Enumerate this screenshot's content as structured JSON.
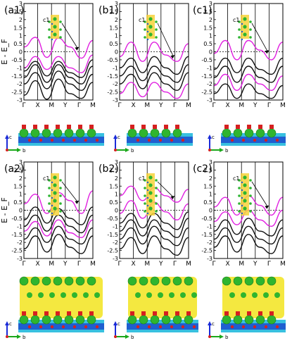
{
  "figure": {
    "background": "#ffffff"
  },
  "colors": {
    "bulk_bands": "#111111",
    "slab_bands": "#e020e0",
    "fermi_line": "#000000",
    "atom_green": "#2fb52f",
    "atom_red": "#d62020",
    "density_yellow": "#f0e000",
    "density_blue": "#1f5fd0",
    "density_cyan": "#38c0e0",
    "inset_highlight": "#f7d23a"
  },
  "axis_labels": {
    "c": "c",
    "b": "b"
  },
  "chart_data": [
    {
      "panel": "(a1)",
      "type": "line",
      "ylabel": "E - E_F",
      "ylim": [
        -3,
        3
      ],
      "yticks": [
        "3",
        "2.5",
        "2",
        "1.5",
        "1",
        "0.5",
        "0",
        "-0.5",
        "-1",
        "-1.5",
        "-2",
        "-2.5",
        "-3"
      ],
      "kpath": [
        "Γ",
        "X",
        "M",
        "Y",
        "Γ",
        "M"
      ],
      "inset_label": "c1",
      "series": [
        {
          "color": "#e020e0",
          "values": [
            0.3,
            0.9,
            -0.35,
            0.85,
            0.3,
            -0.4,
            0.7
          ]
        },
        {
          "color": "#e020e0",
          "values": [
            -1.0,
            -0.3,
            -1.1,
            -0.3,
            -1.0,
            -1.3,
            -0.2
          ]
        },
        {
          "color": "#111111",
          "values": [
            -1.2,
            -0.6,
            -1.5,
            -0.6,
            -1.3,
            -1.6,
            -0.5
          ]
        },
        {
          "color": "#111111",
          "values": [
            -1.6,
            -0.8,
            -1.9,
            -0.8,
            -1.6,
            -2.0,
            -0.9
          ]
        },
        {
          "color": "#111111",
          "values": [
            -2.0,
            -1.3,
            -2.3,
            -1.2,
            -2.0,
            -2.4,
            -1.4
          ]
        },
        {
          "color": "#111111",
          "values": [
            -2.7,
            -1.8,
            -2.95,
            -1.7,
            -2.6,
            -2.9,
            -1.9
          ]
        }
      ]
    },
    {
      "panel": "(b1)",
      "type": "line",
      "ylabel": "",
      "ylim": [
        -3,
        3
      ],
      "yticks": [
        "3",
        "2.5",
        "2",
        "1.5",
        "1",
        "0.5",
        "0",
        "-0.5",
        "-1",
        "-1.5",
        "-2",
        "-2.5",
        "-3"
      ],
      "kpath": [
        "Γ",
        "X",
        "M",
        "Y",
        "Γ",
        "M"
      ],
      "inset_label": "c1",
      "series": [
        {
          "color": "#e020e0",
          "values": [
            -0.3,
            0.6,
            -0.6,
            0.6,
            -0.2,
            -0.6,
            0.5
          ]
        },
        {
          "color": "#111111",
          "values": [
            -1.0,
            -0.4,
            -1.3,
            -0.3,
            -1.0,
            -1.4,
            -0.3
          ]
        },
        {
          "color": "#111111",
          "values": [
            -1.5,
            -0.9,
            -1.8,
            -0.9,
            -1.5,
            -1.9,
            -0.8
          ]
        },
        {
          "color": "#111111",
          "values": [
            -2.0,
            -1.4,
            -2.3,
            -1.3,
            -2.0,
            -2.4,
            -1.3
          ]
        },
        {
          "color": "#e020e0",
          "values": [
            -2.6,
            -1.9,
            -2.8,
            -1.9,
            -2.5,
            -2.9,
            -2.0
          ]
        }
      ]
    },
    {
      "panel": "(c1)",
      "type": "line",
      "ylabel": "",
      "ylim": [
        -3,
        3
      ],
      "yticks": [
        "3",
        "2.5",
        "2",
        "1.5",
        "1",
        "0.5",
        "0",
        "-0.5",
        "-1",
        "-1.5",
        "-2",
        "-2.5",
        "-3"
      ],
      "kpath": [
        "Γ",
        "X",
        "M",
        "Y",
        "Γ",
        "M"
      ],
      "inset_label": "c1",
      "series": [
        {
          "color": "#e020e0",
          "values": [
            -0.1,
            0.7,
            -0.5,
            0.7,
            0.1,
            -0.5,
            0.6
          ]
        },
        {
          "color": "#111111",
          "values": [
            -1.1,
            -0.4,
            -1.3,
            -0.4,
            -1.1,
            -1.4,
            -0.4
          ]
        },
        {
          "color": "#111111",
          "values": [
            -1.6,
            -0.9,
            -1.9,
            -0.9,
            -1.6,
            -1.9,
            -0.9
          ]
        },
        {
          "color": "#e020e0",
          "values": [
            -2.1,
            -1.4,
            -2.4,
            -1.4,
            -2.0,
            -2.4,
            -1.5
          ]
        },
        {
          "color": "#111111",
          "values": [
            -2.6,
            -2.0,
            -2.9,
            -2.0,
            -2.6,
            -2.9,
            -2.1
          ]
        }
      ]
    },
    {
      "panel": "(a2)",
      "type": "line",
      "ylabel": "E - E_F",
      "ylim": [
        -3,
        3
      ],
      "yticks": [
        "3",
        "2.5",
        "2",
        "1.5",
        "1",
        "0.5",
        "0",
        "-0.5",
        "-1",
        "-1.5",
        "-2",
        "-2.5",
        "-3"
      ],
      "kpath": [
        "Γ",
        "X",
        "M",
        "Y",
        "Γ",
        "M"
      ],
      "inset_label": "c1",
      "series": [
        {
          "color": "#e020e0",
          "values": [
            0.4,
            1.0,
            -0.2,
            1.1,
            0.6,
            -0.2,
            1.2
          ]
        },
        {
          "color": "#111111",
          "values": [
            -0.6,
            0.2,
            -0.8,
            0.1,
            -0.5,
            -0.9,
            0.2
          ]
        },
        {
          "color": "#111111",
          "values": [
            -1.0,
            -0.3,
            -1.3,
            -0.3,
            -1.0,
            -1.4,
            -0.3
          ]
        },
        {
          "color": "#e020e0",
          "values": [
            -1.3,
            -0.7,
            -1.6,
            -0.6,
            -1.4,
            -1.7,
            -0.6
          ]
        },
        {
          "color": "#111111",
          "values": [
            -1.8,
            -1.1,
            -2.0,
            -1.0,
            -1.8,
            -2.1,
            -1.1
          ]
        },
        {
          "color": "#111111",
          "values": [
            -2.4,
            -1.6,
            -2.6,
            -1.5,
            -2.3,
            -2.7,
            -1.6
          ]
        }
      ]
    },
    {
      "panel": "(b2)",
      "type": "line",
      "ylabel": "",
      "ylim": [
        -3,
        3
      ],
      "yticks": [
        "3",
        "2.5",
        "2",
        "1.5",
        "1",
        "0.5",
        "0",
        "-0.5",
        "-1",
        "-1.5",
        "-2",
        "-2.5",
        "-3"
      ],
      "kpath": [
        "Γ",
        "X",
        "M",
        "Y",
        "Γ",
        "M"
      ],
      "inset_label": "c1",
      "series": [
        {
          "color": "#e020e0",
          "values": [
            0.9,
            1.5,
            0.6,
            1.4,
            0.9,
            0.5,
            1.3
          ]
        },
        {
          "color": "#e020e0",
          "values": [
            -0.2,
            0.6,
            -0.5,
            0.5,
            -0.1,
            -0.6,
            0.4
          ]
        },
        {
          "color": "#111111",
          "values": [
            -0.8,
            -0.2,
            -1.1,
            -0.2,
            -0.8,
            -1.2,
            -0.1
          ]
        },
        {
          "color": "#111111",
          "values": [
            -1.3,
            -0.6,
            -1.6,
            -0.6,
            -1.3,
            -1.7,
            -0.5
          ]
        },
        {
          "color": "#111111",
          "values": [
            -1.8,
            -1.1,
            -2.1,
            -1.0,
            -1.8,
            -2.2,
            -1.1
          ]
        },
        {
          "color": "#111111",
          "values": [
            -2.4,
            -1.7,
            -2.7,
            -1.6,
            -2.4,
            -2.8,
            -1.7
          ]
        }
      ]
    },
    {
      "panel": "(c2)",
      "type": "line",
      "ylabel": "",
      "ylim": [
        -3,
        3
      ],
      "yticks": [
        "3",
        "2.5",
        "2",
        "1.5",
        "1",
        "0.5",
        "0",
        "-0.5",
        "-1",
        "-1.5",
        "-2",
        "-2.5",
        "-3"
      ],
      "kpath": [
        "Γ",
        "X",
        "M",
        "Y",
        "Γ",
        "M"
      ],
      "inset_label": "c1",
      "series": [
        {
          "color": "#e020e0",
          "values": [
            0.2,
            0.8,
            -0.3,
            0.9,
            0.3,
            -0.3,
            0.8
          ]
        },
        {
          "color": "#e020e0",
          "values": [
            -0.7,
            -0.1,
            -0.9,
            0.0,
            -0.6,
            -1.0,
            0.0
          ]
        },
        {
          "color": "#111111",
          "values": [
            -1.3,
            -0.6,
            -1.5,
            -0.5,
            -1.3,
            -1.6,
            -0.6
          ]
        },
        {
          "color": "#111111",
          "values": [
            -1.8,
            -1.1,
            -2.0,
            -1.0,
            -1.8,
            -2.1,
            -1.1
          ]
        },
        {
          "color": "#111111",
          "values": [
            -2.3,
            -1.6,
            -2.6,
            -1.5,
            -2.3,
            -2.7,
            -1.6
          ]
        }
      ]
    }
  ]
}
